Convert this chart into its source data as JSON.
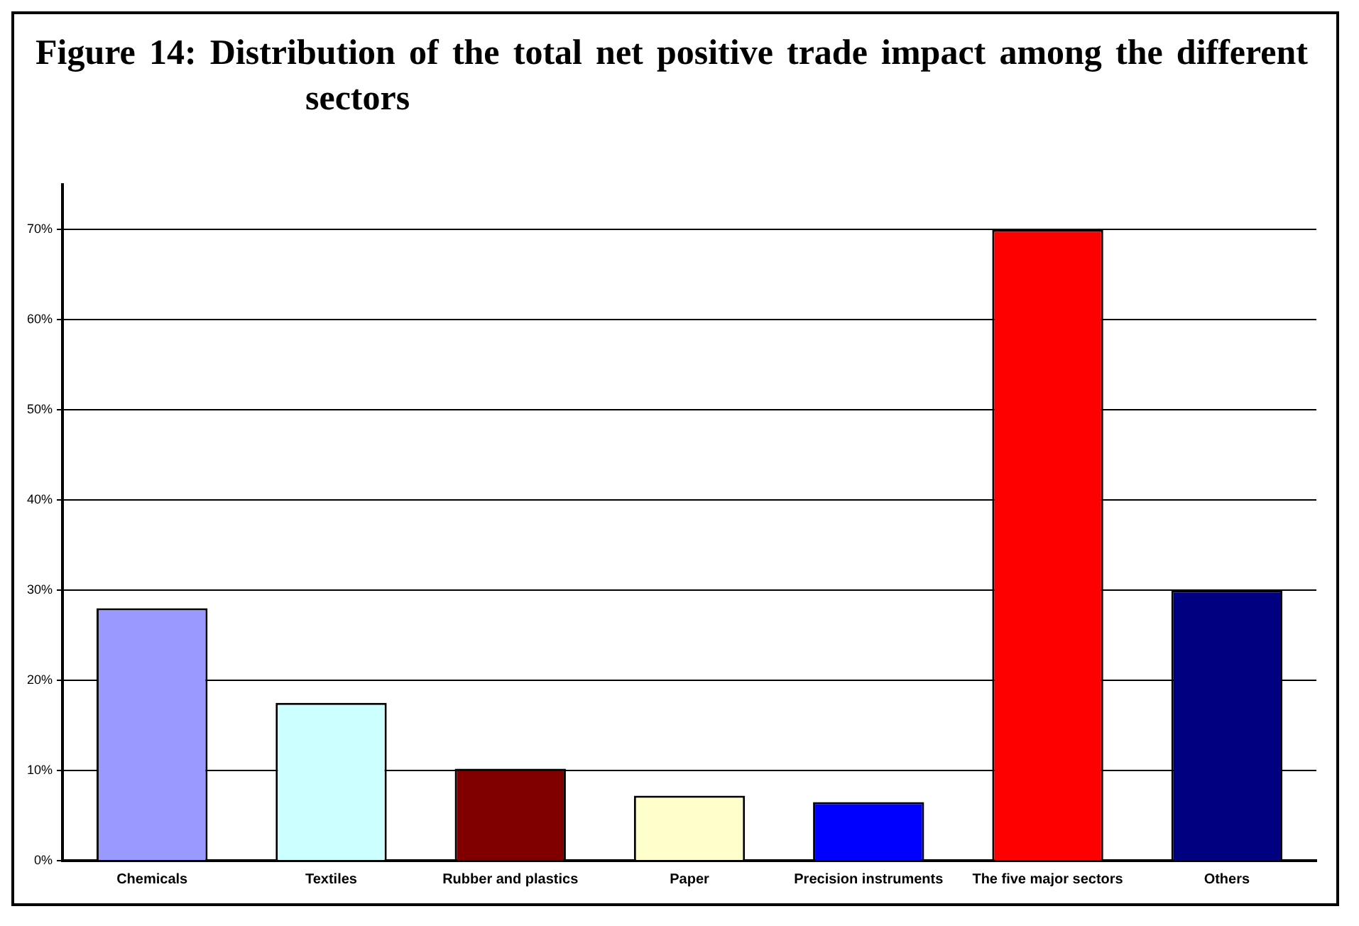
{
  "chart_data": {
    "type": "bar",
    "title": "Figure 14:   Distribution of the total net positive trade impact among the different sectors",
    "categories": [
      "Chemicals",
      "Textiles",
      "Rubber and plastics",
      "Paper",
      "Precision instruments",
      "The five major sectors",
      "Others"
    ],
    "values": [
      28,
      17.5,
      10.2,
      7.2,
      6.5,
      70,
      30
    ],
    "colors": [
      "#9999ff",
      "#ccffff",
      "#800000",
      "#ffffcc",
      "#0000ff",
      "#ff0000",
      "#000080"
    ],
    "ylim": [
      0,
      75
    ],
    "yticks": [
      {
        "value": 0,
        "label": "0%"
      },
      {
        "value": 10,
        "label": "10%"
      },
      {
        "value": 20,
        "label": "20%"
      },
      {
        "value": 30,
        "label": "30%"
      },
      {
        "value": 40,
        "label": "40%"
      },
      {
        "value": 50,
        "label": "50%"
      },
      {
        "value": 60,
        "label": "60%"
      },
      {
        "value": 70,
        "label": "70%"
      }
    ],
    "grid": "y"
  }
}
